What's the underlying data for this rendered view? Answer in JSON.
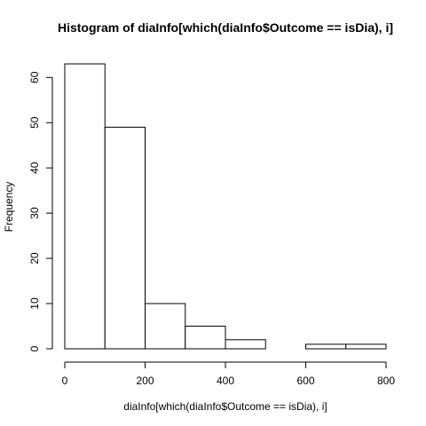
{
  "chart_data": {
    "type": "bar",
    "subtype": "histogram",
    "title": "Histogram of diaInfo[which(diaInfo$Outcome == isDia), i]",
    "xlabel": "diaInfo[which(diaInfo$Outcome == isDia), i]",
    "ylabel": "Frequency",
    "bins": [
      {
        "from": 0,
        "to": 100,
        "count": 63
      },
      {
        "from": 100,
        "to": 200,
        "count": 49
      },
      {
        "from": 200,
        "to": 300,
        "count": 10
      },
      {
        "from": 300,
        "to": 400,
        "count": 5
      },
      {
        "from": 400,
        "to": 500,
        "count": 2
      },
      {
        "from": 500,
        "to": 600,
        "count": 0
      },
      {
        "from": 600,
        "to": 700,
        "count": 1
      },
      {
        "from": 700,
        "to": 800,
        "count": 1
      }
    ],
    "xlim": [
      0,
      800
    ],
    "ylim": [
      0,
      63
    ],
    "x_ticks": [
      0,
      200,
      400,
      600,
      800
    ],
    "y_ticks": [
      0,
      10,
      20,
      30,
      40,
      50,
      60
    ],
    "grid": false
  }
}
